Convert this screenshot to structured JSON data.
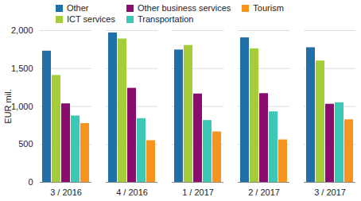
{
  "chart_data": {
    "type": "bar",
    "categories": [
      "3 / 2016",
      "4 / 2016",
      "1 / 2017",
      "2 / 2017",
      "3 / 2017"
    ],
    "series": [
      {
        "name": "Other",
        "color": "#1f6fa8",
        "values": [
          1730,
          1970,
          1745,
          1905,
          1775
        ]
      },
      {
        "name": "ICT services",
        "color": "#a5cd39",
        "values": [
          1410,
          1890,
          1805,
          1760,
          1600
        ]
      },
      {
        "name": "Other business services",
        "color": "#8a0c6c",
        "values": [
          1035,
          1240,
          1165,
          1170,
          1030
        ]
      },
      {
        "name": "Transportation",
        "color": "#3cc8b4",
        "values": [
          875,
          840,
          815,
          930,
          1050
        ]
      },
      {
        "name": "Tourism",
        "color": "#f7941d",
        "values": [
          775,
          550,
          665,
          560,
          825
        ]
      }
    ],
    "y_label": "EUR mil.",
    "ylim": [
      0,
      2000
    ],
    "yticks": [
      0,
      500,
      {
        "value": 1000,
        "label": "1,000"
      },
      {
        "value": 1500,
        "label": "1,500"
      },
      {
        "value": 2000,
        "label": "2,000"
      }
    ],
    "grid": true,
    "legend": "top-left"
  }
}
